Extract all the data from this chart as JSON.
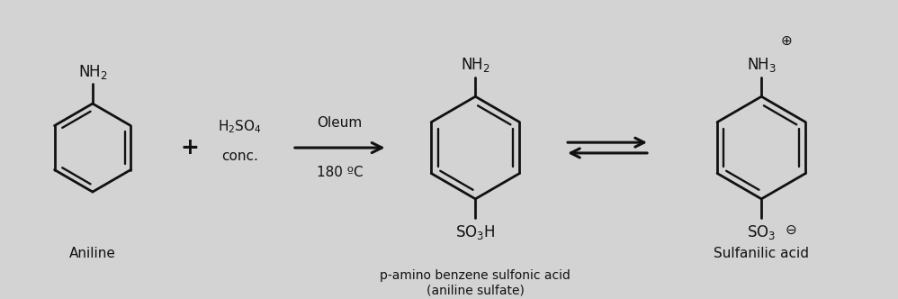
{
  "background_color": "#d3d3d3",
  "line_color": "#111111",
  "figsize": [
    9.98,
    3.32
  ],
  "dpi": 100,
  "aniline_label": "Aniline",
  "product1_label": "p-amino benzene sulfonic acid\n(aniline sulfate)",
  "product2_label": "Sulfanilic acid",
  "reagent_top": "Oleum",
  "reagent_bottom": "180 ºC",
  "h2so4": "H₂SO₄",
  "conc": "conc."
}
